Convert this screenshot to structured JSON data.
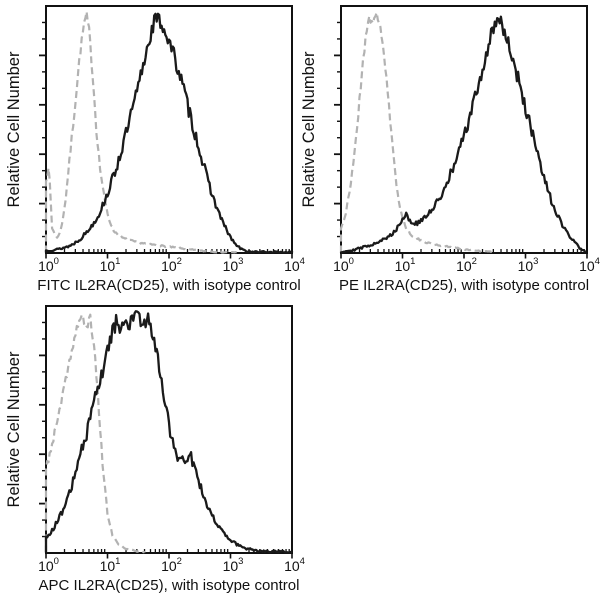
{
  "page": {
    "background": "#ffffff",
    "description": "Flow cytometry staining figure: three overlay histograms (antibody stain vs isotype control)"
  },
  "shared": {
    "ylabel": "Relative Cell Number",
    "axis_color": "#111111",
    "text_color": "#111111",
    "control_color": "#b2b2b2",
    "stain_color": "#1a1a1a"
  },
  "chart_data": [
    {
      "type": "line",
      "subtype": "flow-cytometry-histogram-overlay",
      "id": "fitc",
      "xlabel": "FITC IL2RA(CD25), with isotype control",
      "ylabel": "Relative Cell Number",
      "x_scale": "log10",
      "x_range": [
        1,
        10000
      ],
      "x_tick_exponents": [
        0,
        1,
        2,
        3,
        4
      ],
      "y_ticks_labeled": false,
      "grid": false,
      "legend": "none",
      "series": [
        {
          "name": "isotype control",
          "line": "dashed",
          "color": "#b2b2b2",
          "width": 2.2,
          "noise": 0.018,
          "seed": 7,
          "peak_approx_x": 4.5,
          "points_logx_height": [
            [
              0.0,
              0.3
            ],
            [
              0.05,
              0.34
            ],
            [
              0.1,
              0.1
            ],
            [
              0.18,
              0.06
            ],
            [
              0.25,
              0.1
            ],
            [
              0.32,
              0.22
            ],
            [
              0.4,
              0.42
            ],
            [
              0.48,
              0.62
            ],
            [
              0.55,
              0.8
            ],
            [
              0.62,
              0.93
            ],
            [
              0.66,
              0.96
            ],
            [
              0.7,
              0.9
            ],
            [
              0.76,
              0.72
            ],
            [
              0.82,
              0.5
            ],
            [
              0.88,
              0.34
            ],
            [
              0.95,
              0.22
            ],
            [
              1.02,
              0.14
            ],
            [
              1.1,
              0.09
            ],
            [
              1.25,
              0.06
            ],
            [
              1.45,
              0.045
            ],
            [
              1.7,
              0.035
            ],
            [
              2.0,
              0.025
            ],
            [
              2.3,
              0.015
            ],
            [
              2.55,
              0.008
            ],
            [
              2.8,
              0.004
            ],
            [
              3.1,
              0.002
            ]
          ]
        },
        {
          "name": "FITC IL2RA(CD25) stain",
          "line": "solid",
          "color": "#1a1a1a",
          "width": 2.3,
          "noise": 0.032,
          "seed": 13,
          "peak_approx_x": 60,
          "points_logx_height": [
            [
              0.0,
              0.01
            ],
            [
              0.2,
              0.015
            ],
            [
              0.4,
              0.03
            ],
            [
              0.55,
              0.055
            ],
            [
              0.7,
              0.095
            ],
            [
              0.85,
              0.15
            ],
            [
              1.0,
              0.24
            ],
            [
              1.15,
              0.35
            ],
            [
              1.3,
              0.48
            ],
            [
              1.45,
              0.62
            ],
            [
              1.58,
              0.76
            ],
            [
              1.68,
              0.87
            ],
            [
              1.78,
              0.95
            ],
            [
              1.88,
              0.93
            ],
            [
              1.98,
              0.87
            ],
            [
              2.08,
              0.8
            ],
            [
              2.18,
              0.72
            ],
            [
              2.3,
              0.6
            ],
            [
              2.45,
              0.46
            ],
            [
              2.6,
              0.32
            ],
            [
              2.75,
              0.2
            ],
            [
              2.9,
              0.11
            ],
            [
              3.02,
              0.055
            ],
            [
              3.12,
              0.025
            ],
            [
              3.22,
              0.01
            ],
            [
              3.35,
              0.004
            ],
            [
              4.0,
              0.003
            ]
          ]
        }
      ]
    },
    {
      "type": "line",
      "subtype": "flow-cytometry-histogram-overlay",
      "id": "pe",
      "xlabel": "PE IL2RA(CD25), with isotype control",
      "ylabel": "Relative Cell Number",
      "x_scale": "log10",
      "x_range": [
        1,
        10000
      ],
      "x_tick_exponents": [
        0,
        1,
        2,
        3,
        4
      ],
      "y_ticks_labeled": false,
      "grid": false,
      "legend": "none",
      "series": [
        {
          "name": "isotype control",
          "line": "dashed",
          "color": "#b2b2b2",
          "width": 2.2,
          "noise": 0.018,
          "seed": 21,
          "peak_approx_x": 3.8,
          "points_logx_height": [
            [
              0.0,
              0.1
            ],
            [
              0.08,
              0.16
            ],
            [
              0.16,
              0.28
            ],
            [
              0.25,
              0.48
            ],
            [
              0.33,
              0.7
            ],
            [
              0.4,
              0.88
            ],
            [
              0.46,
              0.96
            ],
            [
              0.52,
              0.92
            ],
            [
              0.58,
              0.97
            ],
            [
              0.64,
              0.92
            ],
            [
              0.7,
              0.8
            ],
            [
              0.77,
              0.62
            ],
            [
              0.84,
              0.42
            ],
            [
              0.91,
              0.26
            ],
            [
              0.98,
              0.16
            ],
            [
              1.06,
              0.1
            ],
            [
              1.16,
              0.07
            ],
            [
              1.3,
              0.05
            ],
            [
              1.5,
              0.035
            ],
            [
              1.75,
              0.025
            ],
            [
              2.0,
              0.015
            ],
            [
              2.25,
              0.008
            ],
            [
              2.5,
              0.004
            ]
          ]
        },
        {
          "name": "PE IL2RA(CD25) stain",
          "line": "solid",
          "color": "#1a1a1a",
          "width": 2.3,
          "noise": 0.032,
          "seed": 29,
          "peak_approx_x": 330,
          "points_logx_height": [
            [
              0.0,
              0.005
            ],
            [
              0.25,
              0.015
            ],
            [
              0.45,
              0.03
            ],
            [
              0.6,
              0.045
            ],
            [
              0.75,
              0.06
            ],
            [
              0.88,
              0.09
            ],
            [
              0.98,
              0.13
            ],
            [
              1.06,
              0.16
            ],
            [
              1.14,
              0.12
            ],
            [
              1.25,
              0.12
            ],
            [
              1.4,
              0.15
            ],
            [
              1.55,
              0.2
            ],
            [
              1.7,
              0.27
            ],
            [
              1.85,
              0.36
            ],
            [
              2.0,
              0.47
            ],
            [
              2.15,
              0.6
            ],
            [
              2.3,
              0.74
            ],
            [
              2.42,
              0.86
            ],
            [
              2.52,
              0.95
            ],
            [
              2.62,
              0.93
            ],
            [
              2.72,
              0.85
            ],
            [
              2.85,
              0.73
            ],
            [
              3.0,
              0.59
            ],
            [
              3.15,
              0.44
            ],
            [
              3.3,
              0.3
            ],
            [
              3.45,
              0.19
            ],
            [
              3.6,
              0.11
            ],
            [
              3.75,
              0.055
            ],
            [
              3.88,
              0.022
            ],
            [
              3.97,
              0.008
            ]
          ]
        }
      ]
    },
    {
      "type": "line",
      "subtype": "flow-cytometry-histogram-overlay",
      "id": "apc",
      "xlabel": "APC IL2RA(CD25), with isotype control",
      "ylabel": "Relative Cell Number",
      "x_scale": "log10",
      "x_range": [
        1,
        10000
      ],
      "x_tick_exponents": [
        0,
        1,
        2,
        3,
        4
      ],
      "y_ticks_labeled": false,
      "grid": false,
      "legend": "none",
      "series": [
        {
          "name": "isotype control",
          "line": "dashed",
          "color": "#b2b2b2",
          "width": 2.2,
          "noise": 0.018,
          "seed": 37,
          "peak_approx_x": 4.5,
          "points_logx_height": [
            [
              0.0,
              0.34
            ],
            [
              0.1,
              0.44
            ],
            [
              0.2,
              0.55
            ],
            [
              0.3,
              0.67
            ],
            [
              0.4,
              0.8
            ],
            [
              0.5,
              0.91
            ],
            [
              0.58,
              0.96
            ],
            [
              0.65,
              0.91
            ],
            [
              0.72,
              0.95
            ],
            [
              0.79,
              0.82
            ],
            [
              0.86,
              0.58
            ],
            [
              0.93,
              0.33
            ],
            [
              1.0,
              0.16
            ],
            [
              1.08,
              0.07
            ],
            [
              1.18,
              0.035
            ],
            [
              1.32,
              0.015
            ],
            [
              1.48,
              0.007
            ],
            [
              1.6,
              0.004
            ]
          ]
        },
        {
          "name": "APC IL2RA(CD25) stain",
          "line": "solid",
          "color": "#1a1a1a",
          "width": 2.3,
          "noise": 0.032,
          "seed": 43,
          "peak_approx_x": 35,
          "points_logx_height": [
            [
              0.0,
              0.06
            ],
            [
              0.12,
              0.1
            ],
            [
              0.25,
              0.16
            ],
            [
              0.38,
              0.24
            ],
            [
              0.5,
              0.34
            ],
            [
              0.62,
              0.45
            ],
            [
              0.74,
              0.56
            ],
            [
              0.85,
              0.67
            ],
            [
              0.95,
              0.77
            ],
            [
              1.05,
              0.87
            ],
            [
              1.15,
              0.94
            ],
            [
              1.25,
              0.9
            ],
            [
              1.35,
              0.93
            ],
            [
              1.45,
              0.96
            ],
            [
              1.55,
              0.93
            ],
            [
              1.65,
              0.95
            ],
            [
              1.75,
              0.88
            ],
            [
              1.85,
              0.74
            ],
            [
              1.95,
              0.58
            ],
            [
              2.05,
              0.46
            ],
            [
              2.15,
              0.39
            ],
            [
              2.25,
              0.38
            ],
            [
              2.35,
              0.4
            ],
            [
              2.45,
              0.31
            ],
            [
              2.58,
              0.22
            ],
            [
              2.7,
              0.15
            ],
            [
              2.82,
              0.1
            ],
            [
              2.95,
              0.06
            ],
            [
              3.1,
              0.035
            ],
            [
              3.25,
              0.018
            ],
            [
              3.45,
              0.008
            ],
            [
              4.0,
              0.004
            ]
          ]
        }
      ]
    }
  ]
}
